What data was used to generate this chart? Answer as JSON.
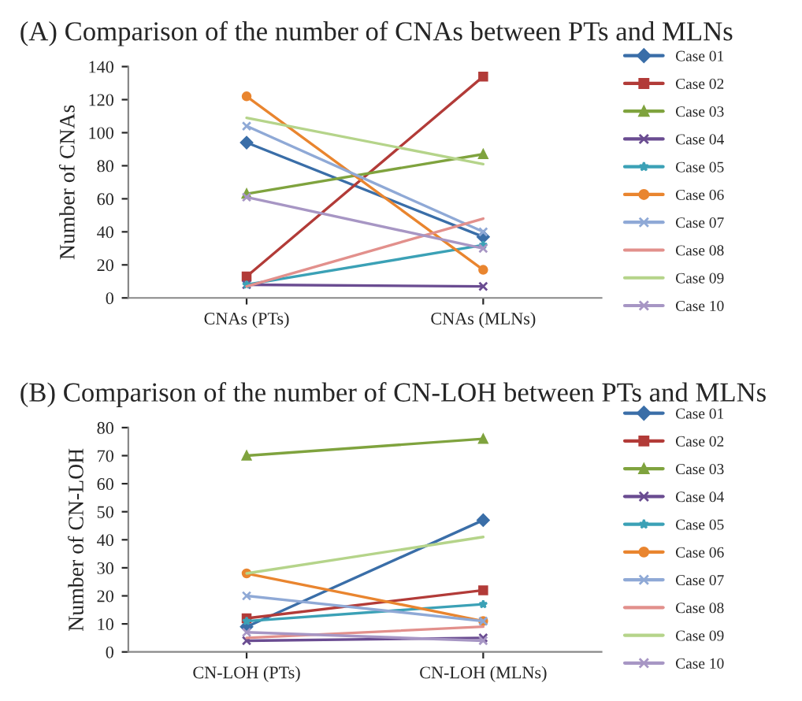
{
  "chart_data": [
    {
      "type": "line",
      "title": "(A) Comparison of the number of CNAs between PTs and MLNs",
      "ylabel": "Number of CNAs",
      "categories": [
        "CNAs (PTs)",
        "CNAs (MLNs)"
      ],
      "ylim": [
        0,
        140
      ],
      "yticks": [
        0,
        20,
        40,
        60,
        80,
        100,
        120,
        140
      ],
      "grid": false,
      "legend": "right",
      "series": [
        {
          "name": "Case 01",
          "color": "#3a6ea8",
          "marker": "diamond",
          "values": [
            94,
            37
          ]
        },
        {
          "name": "Case 02",
          "color": "#b23b38",
          "marker": "square",
          "values": [
            13,
            134
          ]
        },
        {
          "name": "Case 03",
          "color": "#7fa33e",
          "marker": "triangle",
          "values": [
            63,
            87
          ]
        },
        {
          "name": "Case 04",
          "color": "#6a4c91",
          "marker": "cross",
          "values": [
            8,
            7
          ]
        },
        {
          "name": "Case 05",
          "color": "#3ba1b6",
          "marker": "star",
          "values": [
            8,
            32
          ]
        },
        {
          "name": "Case 06",
          "color": "#e9852f",
          "marker": "circle",
          "values": [
            122,
            17
          ]
        },
        {
          "name": "Case 07",
          "color": "#8fa9d6",
          "marker": "cross",
          "values": [
            104,
            40
          ]
        },
        {
          "name": "Case 08",
          "color": "#e2908c",
          "marker": "none",
          "values": [
            7,
            48
          ]
        },
        {
          "name": "Case 09",
          "color": "#b5d48a",
          "marker": "none",
          "values": [
            109,
            81
          ]
        },
        {
          "name": "Case 10",
          "color": "#a796c4",
          "marker": "cross",
          "values": [
            61,
            30
          ]
        }
      ]
    },
    {
      "type": "line",
      "title": "(B) Comparison of the number of CN-LOH between PTs and MLNs",
      "ylabel": "Number of CN-LOH",
      "categories": [
        "CN-LOH (PTs)",
        "CN-LOH (MLNs)"
      ],
      "ylim": [
        0,
        80
      ],
      "yticks": [
        0,
        10,
        20,
        30,
        40,
        50,
        60,
        70,
        80
      ],
      "grid": false,
      "legend": "right",
      "series": [
        {
          "name": "Case 01",
          "color": "#3a6ea8",
          "marker": "diamond",
          "values": [
            9,
            47
          ]
        },
        {
          "name": "Case 02",
          "color": "#b23b38",
          "marker": "square",
          "values": [
            12,
            22
          ]
        },
        {
          "name": "Case 03",
          "color": "#7fa33e",
          "marker": "triangle",
          "values": [
            70,
            76
          ]
        },
        {
          "name": "Case 04",
          "color": "#6a4c91",
          "marker": "cross",
          "values": [
            4,
            5
          ]
        },
        {
          "name": "Case 05",
          "color": "#3ba1b6",
          "marker": "star",
          "values": [
            11,
            17
          ]
        },
        {
          "name": "Case 06",
          "color": "#e9852f",
          "marker": "circle",
          "values": [
            28,
            11
          ]
        },
        {
          "name": "Case 07",
          "color": "#8fa9d6",
          "marker": "cross",
          "values": [
            20,
            11
          ]
        },
        {
          "name": "Case 08",
          "color": "#e2908c",
          "marker": "none",
          "values": [
            5,
            9
          ]
        },
        {
          "name": "Case 09",
          "color": "#b5d48a",
          "marker": "none",
          "values": [
            28,
            41
          ]
        },
        {
          "name": "Case 10",
          "color": "#a796c4",
          "marker": "cross",
          "values": [
            7,
            4
          ]
        }
      ]
    }
  ]
}
